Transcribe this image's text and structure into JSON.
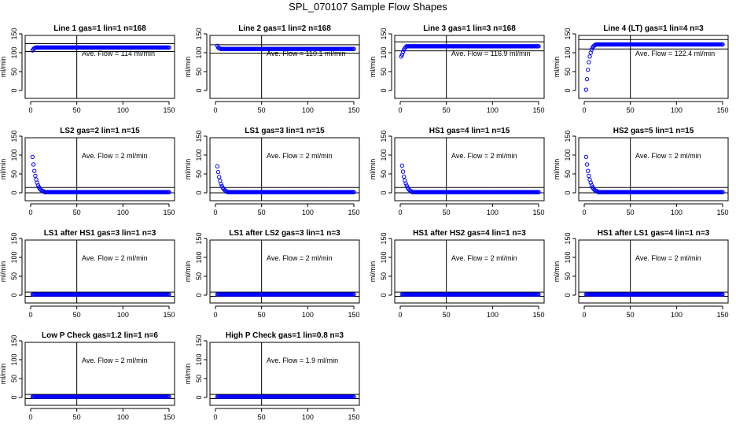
{
  "title": "SPL_070107  Sample Flow Shapes",
  "chart_data": [
    {
      "type": "scatter",
      "title": "Line 1 gas=1 lin=1 n=168",
      "annotation": "Ave. Flow =  114  ml/min",
      "xlim": [
        0,
        150
      ],
      "ylim": [
        0,
        150
      ],
      "xticks": [
        0,
        50,
        100,
        150
      ],
      "yticks": [
        0,
        50,
        100,
        150
      ],
      "ylabel": "ml/min",
      "vline": 50,
      "hlines": [
        103,
        124
      ],
      "level": 114,
      "series_color": "#0000ff",
      "points": [
        [
          2,
          106
        ],
        [
          3,
          110
        ],
        [
          4,
          112
        ],
        [
          5,
          113
        ]
      ],
      "steady": [
        6,
        150,
        114
      ]
    },
    {
      "type": "scatter",
      "title": "Line 2 gas=1 lin=2 n=168",
      "annotation": "Ave. Flow =  110.1  ml/min",
      "xlim": [
        0,
        150
      ],
      "ylim": [
        0,
        150
      ],
      "xticks": [
        0,
        50,
        100,
        150
      ],
      "yticks": [
        0,
        50,
        100,
        150
      ],
      "ylabel": "ml/min",
      "vline": 50,
      "hlines": [
        99,
        121
      ],
      "level": 110,
      "series_color": "#0000ff",
      "points": [
        [
          2,
          118
        ],
        [
          3,
          114
        ],
        [
          4,
          112
        ],
        [
          5,
          111
        ]
      ],
      "steady": [
        6,
        150,
        110
      ]
    },
    {
      "type": "scatter",
      "title": "Line 3 gas=1 lin=3 n=168",
      "annotation": "Ave. Flow =  116.9  ml/min",
      "xlim": [
        0,
        150
      ],
      "ylim": [
        0,
        150
      ],
      "xticks": [
        0,
        50,
        100,
        150
      ],
      "yticks": [
        0,
        50,
        100,
        150
      ],
      "ylabel": "ml/min",
      "vline": 50,
      "hlines": [
        105,
        129
      ],
      "level": 117,
      "series_color": "#0000ff",
      "points": [
        [
          1,
          90
        ],
        [
          2,
          95
        ],
        [
          3,
          102
        ],
        [
          4,
          108
        ],
        [
          5,
          112
        ],
        [
          6,
          115
        ]
      ],
      "steady": [
        7,
        150,
        117
      ]
    },
    {
      "type": "scatter",
      "title": "Line 4 (LT) gas=1 lin=4 n=3",
      "annotation": "Ave. Flow =  122.4  ml/min",
      "xlim": [
        0,
        150
      ],
      "ylim": [
        0,
        150
      ],
      "xticks": [
        0,
        50,
        100,
        150
      ],
      "yticks": [
        0,
        50,
        100,
        150
      ],
      "ylabel": "ml/min",
      "vline": 50,
      "hlines": [
        110,
        135
      ],
      "level": 122,
      "series_color": "#0000ff",
      "points": [
        [
          2,
          2
        ],
        [
          3,
          30
        ],
        [
          4,
          55
        ],
        [
          5,
          75
        ],
        [
          6,
          90
        ],
        [
          7,
          100
        ],
        [
          8,
          108
        ],
        [
          9,
          113
        ],
        [
          10,
          117
        ],
        [
          11,
          119
        ],
        [
          12,
          121
        ]
      ],
      "steady": [
        13,
        150,
        122
      ]
    },
    {
      "type": "scatter",
      "title": "LS2 gas=2 lin=1 n=15",
      "annotation": "Ave. Flow =  2  ml/min",
      "xlim": [
        0,
        150
      ],
      "ylim": [
        0,
        150
      ],
      "xticks": [
        0,
        50,
        100,
        150
      ],
      "yticks": [
        0,
        50,
        100,
        150
      ],
      "ylabel": "ml/min",
      "vline": 50,
      "hlines": [
        0,
        14
      ],
      "level": 2,
      "series_color": "#0000ff",
      "points": [
        [
          2,
          95
        ],
        [
          3,
          75
        ],
        [
          4,
          58
        ],
        [
          5,
          45
        ],
        [
          6,
          35
        ],
        [
          7,
          27
        ],
        [
          8,
          20
        ],
        [
          9,
          15
        ],
        [
          10,
          11
        ],
        [
          11,
          8
        ],
        [
          12,
          6
        ],
        [
          13,
          5
        ],
        [
          14,
          4
        ]
      ],
      "steady": [
        15,
        150,
        2
      ]
    },
    {
      "type": "scatter",
      "title": "LS1 gas=3 lin=1 n=15",
      "annotation": "Ave. Flow =  2  ml/min",
      "xlim": [
        0,
        150
      ],
      "ylim": [
        0,
        150
      ],
      "xticks": [
        0,
        50,
        100,
        150
      ],
      "yticks": [
        0,
        50,
        100,
        150
      ],
      "ylabel": "ml/min",
      "vline": 50,
      "hlines": [
        0,
        14
      ],
      "level": 2,
      "series_color": "#0000ff",
      "points": [
        [
          2,
          70
        ],
        [
          3,
          55
        ],
        [
          4,
          42
        ],
        [
          5,
          32
        ],
        [
          6,
          24
        ],
        [
          7,
          18
        ],
        [
          8,
          13
        ],
        [
          9,
          10
        ],
        [
          10,
          7
        ],
        [
          11,
          5
        ],
        [
          12,
          4
        ]
      ],
      "steady": [
        13,
        150,
        2
      ]
    },
    {
      "type": "scatter",
      "title": "HS1 gas=4 lin=1 n=15",
      "annotation": "Ave. Flow =  2  ml/min",
      "xlim": [
        0,
        150
      ],
      "ylim": [
        0,
        150
      ],
      "xticks": [
        0,
        50,
        100,
        150
      ],
      "yticks": [
        0,
        50,
        100,
        150
      ],
      "ylabel": "ml/min",
      "vline": 50,
      "hlines": [
        0,
        14
      ],
      "level": 2,
      "series_color": "#0000ff",
      "points": [
        [
          2,
          72
        ],
        [
          3,
          56
        ],
        [
          4,
          43
        ],
        [
          5,
          33
        ],
        [
          6,
          25
        ],
        [
          7,
          19
        ],
        [
          8,
          14
        ],
        [
          9,
          10
        ],
        [
          10,
          7
        ],
        [
          11,
          5
        ],
        [
          12,
          4
        ]
      ],
      "steady": [
        13,
        150,
        2
      ]
    },
    {
      "type": "scatter",
      "title": "HS2 gas=5 lin=1 n=15",
      "annotation": "Ave. Flow =  2  ml/min",
      "xlim": [
        0,
        150
      ],
      "ylim": [
        0,
        150
      ],
      "xticks": [
        0,
        50,
        100,
        150
      ],
      "yticks": [
        0,
        50,
        100,
        150
      ],
      "ylabel": "ml/min",
      "vline": 50,
      "hlines": [
        0,
        14
      ],
      "level": 2,
      "series_color": "#0000ff",
      "points": [
        [
          2,
          95
        ],
        [
          3,
          75
        ],
        [
          4,
          58
        ],
        [
          5,
          45
        ],
        [
          6,
          35
        ],
        [
          7,
          27
        ],
        [
          8,
          20
        ],
        [
          9,
          15
        ],
        [
          10,
          11
        ],
        [
          11,
          8
        ],
        [
          12,
          6
        ],
        [
          13,
          5
        ],
        [
          14,
          4
        ]
      ],
      "steady": [
        15,
        150,
        2
      ]
    },
    {
      "type": "scatter",
      "title": "LS1 after HS1 gas=3 lin=1 n=3",
      "annotation": "Ave. Flow =  2  ml/min",
      "xlim": [
        0,
        150
      ],
      "ylim": [
        0,
        150
      ],
      "xticks": [
        0,
        50,
        100,
        150
      ],
      "yticks": [
        0,
        50,
        100,
        150
      ],
      "ylabel": "ml/min",
      "vline": 50,
      "hlines": [
        -3,
        8
      ],
      "level": 2,
      "series_color": "#0000ff",
      "points": [],
      "steady": [
        2,
        150,
        2
      ]
    },
    {
      "type": "scatter",
      "title": "LS1 after LS2 gas=3 lin=1 n=3",
      "annotation": "Ave. Flow =  2  ml/min",
      "xlim": [
        0,
        150
      ],
      "ylim": [
        0,
        150
      ],
      "xticks": [
        0,
        50,
        100,
        150
      ],
      "yticks": [
        0,
        50,
        100,
        150
      ],
      "ylabel": "ml/min",
      "vline": 50,
      "hlines": [
        -3,
        8
      ],
      "level": 2,
      "series_color": "#0000ff",
      "points": [],
      "steady": [
        2,
        150,
        2
      ]
    },
    {
      "type": "scatter",
      "title": "HS1 after HS2 gas=4 lin=1 n=3",
      "annotation": "Ave. Flow =  2  ml/min",
      "xlim": [
        0,
        150
      ],
      "ylim": [
        0,
        150
      ],
      "xticks": [
        0,
        50,
        100,
        150
      ],
      "yticks": [
        0,
        50,
        100,
        150
      ],
      "ylabel": "ml/min",
      "vline": 50,
      "hlines": [
        -3,
        8
      ],
      "level": 2,
      "series_color": "#0000ff",
      "points": [],
      "steady": [
        2,
        150,
        2
      ]
    },
    {
      "type": "scatter",
      "title": "HS1 after LS1 gas=4 lin=1 n=3",
      "annotation": "Ave. Flow =  2  ml/min",
      "xlim": [
        0,
        150
      ],
      "ylim": [
        0,
        150
      ],
      "xticks": [
        0,
        50,
        100,
        150
      ],
      "yticks": [
        0,
        50,
        100,
        150
      ],
      "ylabel": "ml/min",
      "vline": 50,
      "hlines": [
        -3,
        8
      ],
      "level": 2,
      "series_color": "#0000ff",
      "points": [],
      "steady": [
        2,
        150,
        2
      ]
    },
    {
      "type": "scatter",
      "title": "Low P Check gas=1.2 lin=1 n=6",
      "annotation": "Ave. Flow =  2  ml/min",
      "xlim": [
        0,
        150
      ],
      "ylim": [
        0,
        150
      ],
      "xticks": [
        0,
        50,
        100,
        150
      ],
      "yticks": [
        0,
        50,
        100,
        150
      ],
      "ylabel": "ml/min",
      "vline": 50,
      "hlines": [
        -3,
        8
      ],
      "level": 2,
      "series_color": "#0000ff",
      "points": [],
      "steady": [
        2,
        150,
        2
      ]
    },
    {
      "type": "scatter",
      "title": "High P Check gas=1 lin=0.8 n=3",
      "annotation": "Ave. Flow =  1.9  ml/min",
      "xlim": [
        0,
        150
      ],
      "ylim": [
        0,
        150
      ],
      "xticks": [
        0,
        50,
        100,
        150
      ],
      "yticks": [
        0,
        50,
        100,
        150
      ],
      "ylabel": "ml/min",
      "vline": 50,
      "hlines": [
        -3,
        8
      ],
      "level": 1.9,
      "series_color": "#0000ff",
      "points": [],
      "steady": [
        2,
        150,
        1.9
      ]
    }
  ]
}
